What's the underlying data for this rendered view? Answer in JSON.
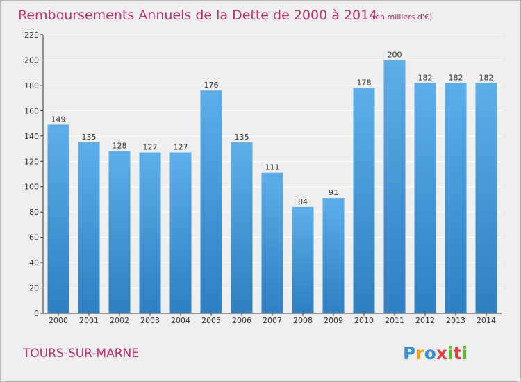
{
  "title": "Remboursements Annuels de la Dette de 2000 à 2014",
  "unit": "(en milliers d'€)",
  "commune": "TOURS-SUR-MARNE",
  "logo": {
    "letters": [
      "P",
      "r",
      "o",
      "x",
      "i",
      "t",
      "i"
    ],
    "colors": [
      "#3a8fd6",
      "#f0a020",
      "#3a8fd6",
      "#e23b3b",
      "#5cb83a",
      "#e23b3b",
      "#5cb83a"
    ]
  },
  "colors": {
    "bar_top": "#5eaeea",
    "bar_bottom": "#2f7fc1",
    "grid": "#ffffff",
    "axis": "#333333"
  },
  "chart_data": {
    "type": "bar",
    "title": "Remboursements Annuels de la Dette de 2000 à 2014",
    "xlabel": "",
    "ylabel": "",
    "categories": [
      "2000",
      "2001",
      "2002",
      "2003",
      "2004",
      "2005",
      "2006",
      "2007",
      "2008",
      "2009",
      "2010",
      "2011",
      "2012",
      "2013",
      "2014"
    ],
    "values": [
      149,
      135,
      128,
      127,
      127,
      176,
      135,
      111,
      84,
      91,
      178,
      200,
      182,
      182,
      182
    ],
    "ylim": [
      0,
      220
    ],
    "yticks": [
      0,
      20,
      40,
      60,
      80,
      100,
      120,
      140,
      160,
      180,
      200,
      220
    ],
    "grid": true
  }
}
